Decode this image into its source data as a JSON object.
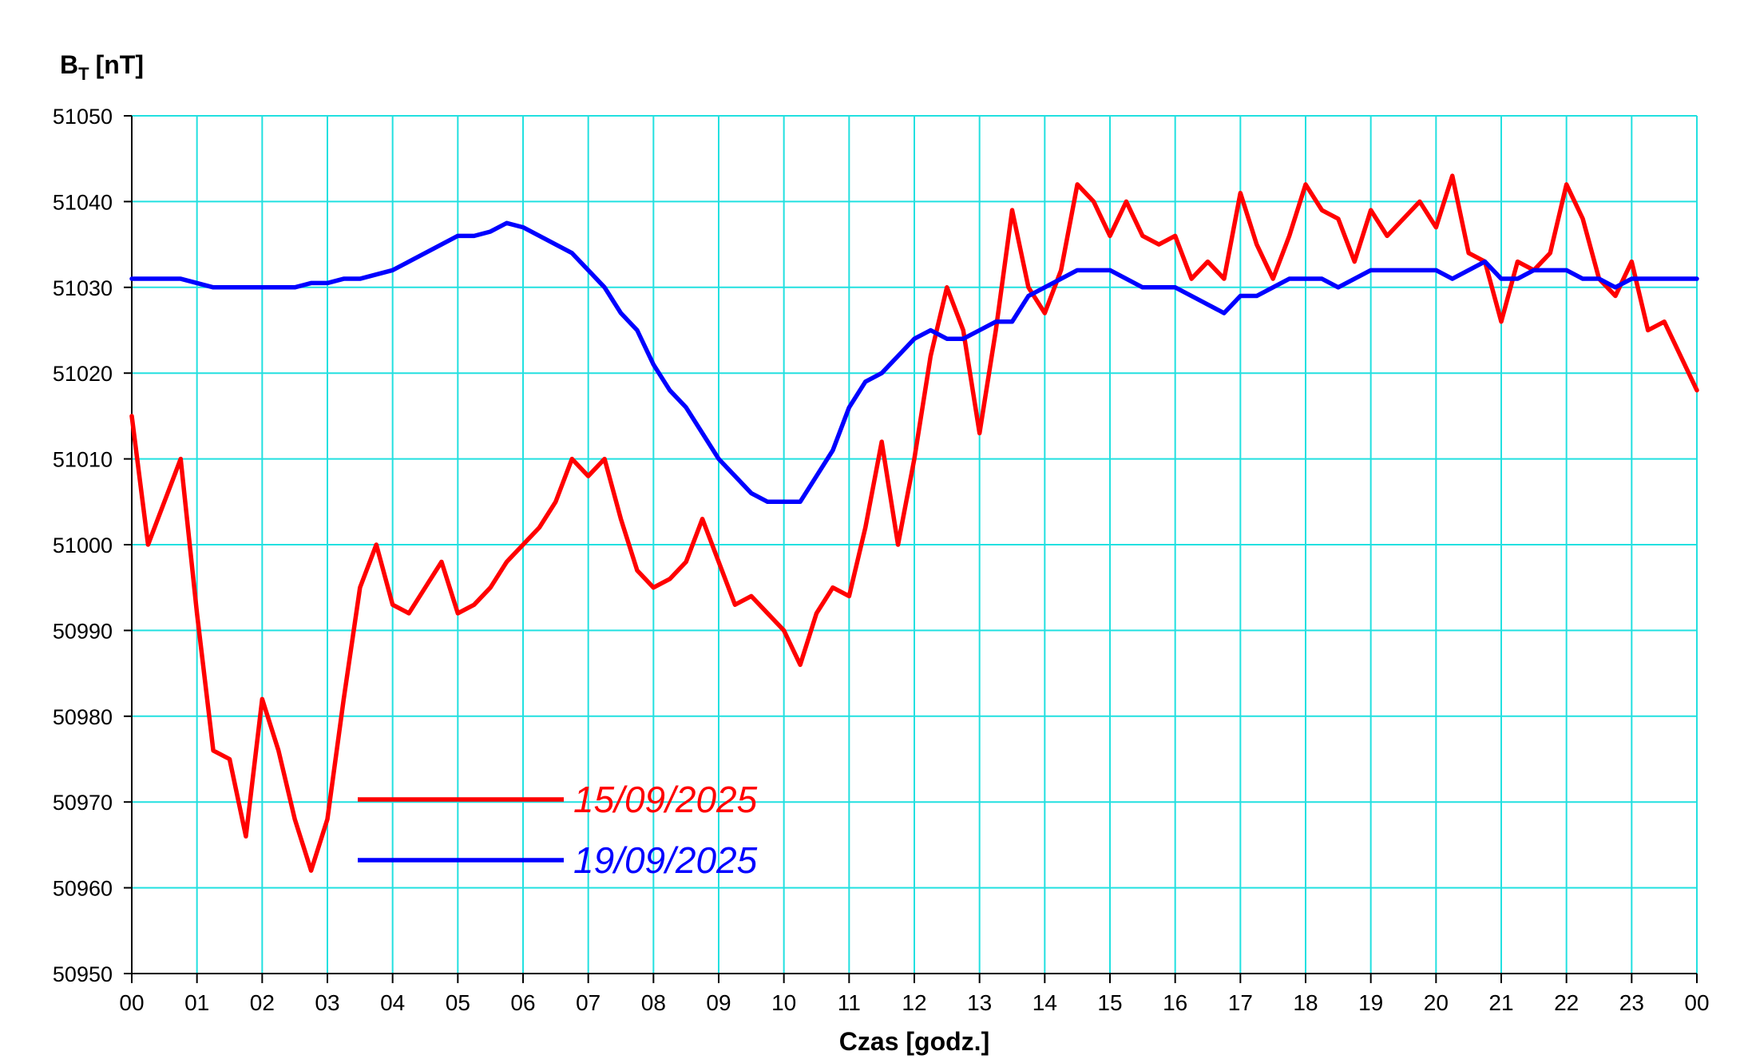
{
  "chart_data": {
    "type": "line",
    "y_label": "B",
    "y_label_subscript": "T",
    "y_label_unit": "[nT]",
    "x_label": "Czas [godz.]",
    "xlim": [
      0,
      24
    ],
    "ylim": [
      50950,
      51050
    ],
    "xticks": [
      {
        "value": 0,
        "label": "00"
      },
      {
        "value": 1,
        "label": "01"
      },
      {
        "value": 2,
        "label": "02"
      },
      {
        "value": 3,
        "label": "03"
      },
      {
        "value": 4,
        "label": "04"
      },
      {
        "value": 5,
        "label": "05"
      },
      {
        "value": 6,
        "label": "06"
      },
      {
        "value": 7,
        "label": "07"
      },
      {
        "value": 8,
        "label": "08"
      },
      {
        "value": 9,
        "label": "09"
      },
      {
        "value": 10,
        "label": "10"
      },
      {
        "value": 11,
        "label": "11"
      },
      {
        "value": 12,
        "label": "12"
      },
      {
        "value": 13,
        "label": "13"
      },
      {
        "value": 14,
        "label": "14"
      },
      {
        "value": 15,
        "label": "15"
      },
      {
        "value": 16,
        "label": "16"
      },
      {
        "value": 17,
        "label": "17"
      },
      {
        "value": 18,
        "label": "18"
      },
      {
        "value": 19,
        "label": "19"
      },
      {
        "value": 20,
        "label": "20"
      },
      {
        "value": 21,
        "label": "21"
      },
      {
        "value": 22,
        "label": "22"
      },
      {
        "value": 23,
        "label": "23"
      },
      {
        "value": 24,
        "label": "00"
      }
    ],
    "yticks": [
      50950,
      50960,
      50970,
      50980,
      50990,
      51000,
      51010,
      51020,
      51030,
      51040,
      51050
    ],
    "grid": true,
    "grid_color": "#22e0e0",
    "legend": "lower left",
    "x": [
      0,
      0.25,
      0.5,
      0.75,
      1,
      1.25,
      1.5,
      1.75,
      2,
      2.25,
      2.5,
      2.75,
      3,
      3.25,
      3.5,
      3.75,
      4,
      4.25,
      4.5,
      4.75,
      5,
      5.25,
      5.5,
      5.75,
      6,
      6.25,
      6.5,
      6.75,
      7,
      7.25,
      7.5,
      7.75,
      8,
      8.25,
      8.5,
      8.75,
      9,
      9.25,
      9.5,
      9.75,
      10,
      10.25,
      10.5,
      10.75,
      11,
      11.25,
      11.5,
      11.75,
      12,
      12.25,
      12.5,
      12.75,
      13,
      13.25,
      13.5,
      13.75,
      14,
      14.25,
      14.5,
      14.75,
      15,
      15.25,
      15.5,
      15.75,
      16,
      16.25,
      16.5,
      16.75,
      17,
      17.25,
      17.5,
      17.75,
      18,
      18.25,
      18.5,
      18.75,
      19,
      19.25,
      19.5,
      19.75,
      20,
      20.25,
      20.5,
      20.75,
      21,
      21.25,
      21.5,
      21.75,
      22,
      22.25,
      22.5,
      22.75,
      23,
      23.25,
      23.5,
      23.75,
      24
    ],
    "series": [
      {
        "name": "15/09/2025",
        "color": "#ff0000",
        "values": [
          51015,
          51000,
          51005,
          51010,
          50992,
          50976,
          50975,
          50966,
          50982,
          50976,
          50968,
          50962,
          50968,
          50982,
          50995,
          51000,
          50993,
          50992,
          50995,
          50998,
          50992,
          50993,
          50995,
          50998,
          51000,
          51002,
          51005,
          51010,
          51008,
          51010,
          51003,
          50997,
          50995,
          50996,
          50998,
          51003,
          50998,
          50993,
          50994,
          50992,
          50990,
          50986,
          50992,
          50995,
          50994,
          51002,
          51012,
          51000,
          51010,
          51022,
          51030,
          51025,
          51013,
          51025,
          51039,
          51030,
          51027,
          51032,
          51042,
          51040,
          51036,
          51040,
          51036,
          51035,
          51036,
          51031,
          51033,
          51031,
          51041,
          51035,
          51031,
          51036,
          51042,
          51039,
          51038,
          51033,
          51039,
          51036,
          51038,
          51040,
          51037,
          51043,
          51034,
          51033,
          51026,
          51033,
          51032,
          51034,
          51042,
          51038,
          51031,
          51029,
          51033,
          51025,
          51026,
          51022,
          51018
        ]
      },
      {
        "name": "19/09/2025",
        "color": "#0000ff",
        "values": [
          51031,
          51031,
          51031,
          51031,
          51030.5,
          51030,
          51030,
          51030,
          51030,
          51030,
          51030,
          51030.5,
          51030.5,
          51031,
          51031,
          51031.5,
          51032,
          51033,
          51034,
          51035,
          51036,
          51036,
          51036.5,
          51037.5,
          51037,
          51036,
          51035,
          51034,
          51032,
          51030,
          51027,
          51025,
          51021,
          51018,
          51016,
          51013,
          51010,
          51008,
          51006,
          51005,
          51005,
          51005,
          51008,
          51011,
          51016,
          51019,
          51020,
          51022,
          51024,
          51025,
          51024,
          51024,
          51025,
          51026,
          51026,
          51029,
          51030,
          51031,
          51032,
          51032,
          51032,
          51031,
          51030,
          51030,
          51030,
          51029,
          51028,
          51027,
          51029,
          51029,
          51030,
          51031,
          51031,
          51031,
          51030,
          51031,
          51032,
          51032,
          51032,
          51032,
          51032,
          51031,
          51032,
          51033,
          51031,
          51031,
          51032,
          51032,
          51032,
          51031,
          51031,
          51030,
          51031,
          51031,
          51031,
          51031,
          51031
        ]
      }
    ]
  }
}
